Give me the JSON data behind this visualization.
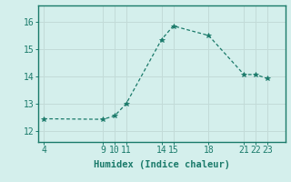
{
  "x": [
    4,
    9,
    10,
    11,
    14,
    15,
    18,
    21,
    22,
    23
  ],
  "y": [
    12.45,
    12.43,
    12.55,
    13.0,
    15.35,
    15.85,
    15.5,
    14.07,
    14.07,
    13.92
  ],
  "line_color": "#1a7a6a",
  "marker": "*",
  "marker_size": 4,
  "bg_color": "#d4efec",
  "grid_color": "#c2dbd8",
  "xlabel": "Humidex (Indice chaleur)",
  "xlabel_fontsize": 7.5,
  "xticks": [
    4,
    9,
    10,
    11,
    14,
    15,
    18,
    21,
    22,
    23
  ],
  "yticks": [
    12,
    13,
    14,
    15,
    16
  ],
  "xlim": [
    3.5,
    24.5
  ],
  "ylim": [
    11.6,
    16.6
  ],
  "tick_fontsize": 7
}
